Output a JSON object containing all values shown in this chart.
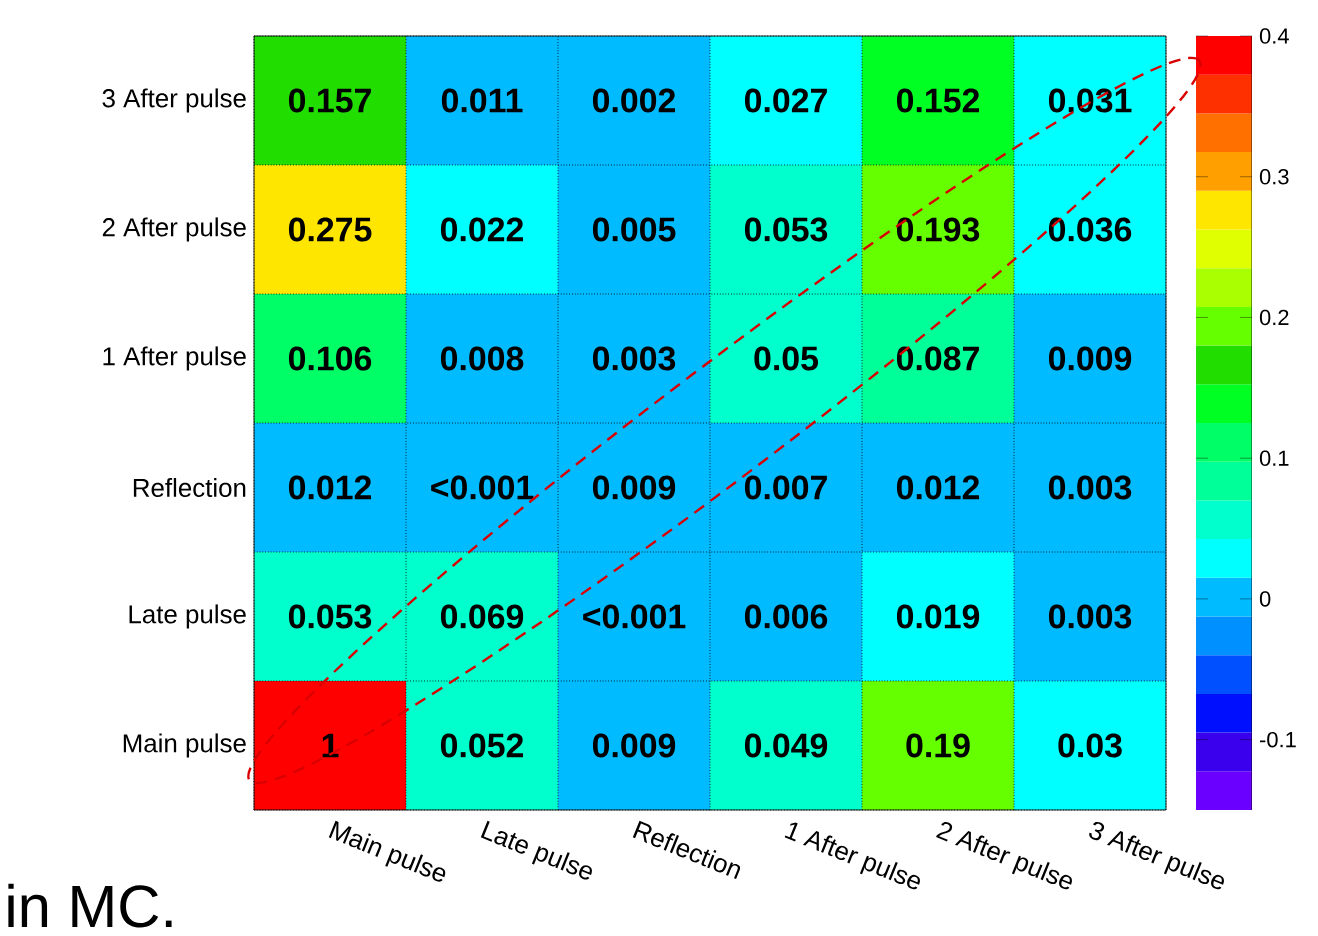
{
  "chart_data": {
    "type": "heatmap",
    "categories": [
      "Main pulse",
      "Late pulse",
      "Reflection",
      "1 After pulse",
      "2 After pulse",
      "3 After pulse"
    ],
    "y_categories": [
      "3 After pulse",
      "2 After pulse",
      "1 After pulse",
      "Reflection",
      "Late pulse",
      "Main pulse"
    ],
    "cells": [
      [
        0.157,
        0.011,
        0.002,
        0.027,
        0.152,
        0.031
      ],
      [
        0.275,
        0.022,
        0.005,
        0.053,
        0.193,
        0.036
      ],
      [
        0.106,
        0.008,
        0.003,
        0.05,
        0.087,
        0.009
      ],
      [
        0.012,
        0,
        0.009,
        0.007,
        0.012,
        0.003
      ],
      [
        0.053,
        0.069,
        0,
        0.006,
        0.019,
        0.003
      ],
      [
        1,
        0.052,
        0.009,
        0.049,
        0.19,
        0.03
      ]
    ],
    "cell_labels": [
      [
        "0.157",
        "0.011",
        "0.002",
        "0.027",
        "0.152",
        "0.031"
      ],
      [
        "0.275",
        "0.022",
        "0.005",
        "0.053",
        "0.193",
        "0.036"
      ],
      [
        "0.106",
        "0.008",
        "0.003",
        "0.05",
        "0.087",
        "0.009"
      ],
      [
        "0.012",
        "<0.001",
        "0.009",
        "0.007",
        "0.012",
        "0.003"
      ],
      [
        "0.053",
        "0.069",
        "<0.001",
        "0.006",
        "0.019",
        "0.003"
      ],
      [
        "1",
        "0.052",
        "0.009",
        "0.049",
        "0.19",
        "0.03"
      ]
    ],
    "clim": [
      -0.15,
      0.4
    ],
    "cticks": [
      -0.1,
      0,
      0.1,
      0.2,
      0.3,
      0.4
    ],
    "grid": true,
    "annotations": [
      "in MC."
    ]
  }
}
